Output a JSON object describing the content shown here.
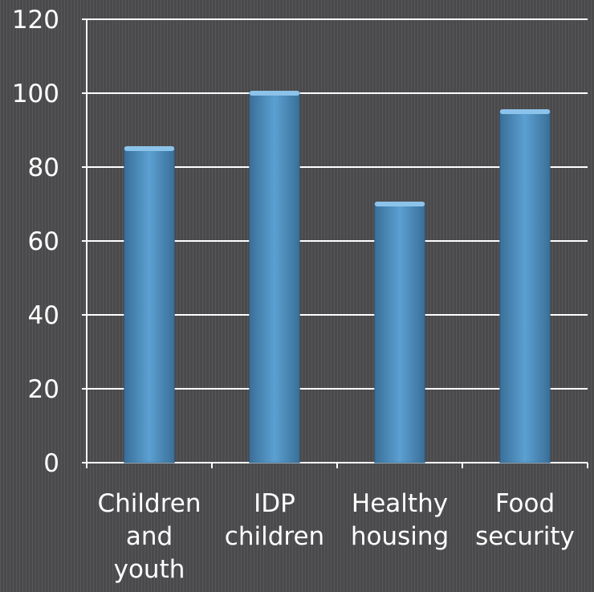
{
  "chart_data": {
    "type": "bar",
    "categories": [
      "Children and youth",
      "IDP children",
      "Healthy housing",
      "Food security"
    ],
    "category_lines": [
      [
        "Children",
        "and",
        "youth"
      ],
      [
        "IDP",
        "children"
      ],
      [
        "Healthy",
        "housing"
      ],
      [
        "Food",
        "security"
      ]
    ],
    "values": [
      85,
      100,
      70,
      95
    ],
    "yticks": [
      "0",
      "20",
      "40",
      "60",
      "80",
      "100",
      "120"
    ],
    "ylim": [
      0,
      120
    ],
    "grid": true,
    "legend": "none",
    "bar_color": "#4f90c2"
  }
}
